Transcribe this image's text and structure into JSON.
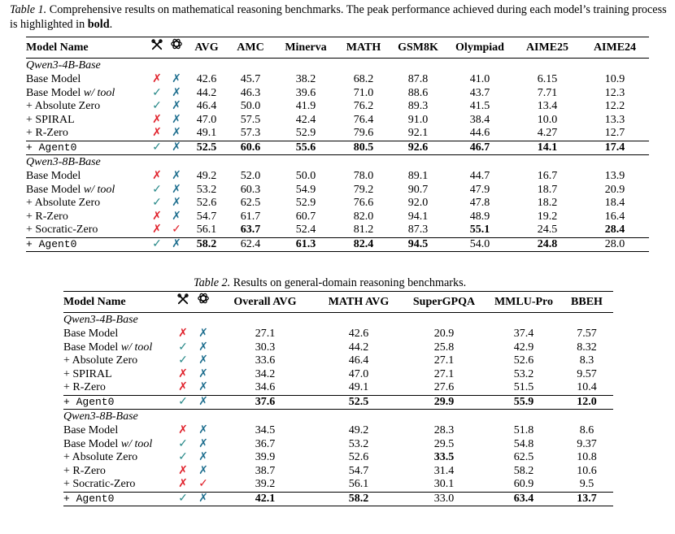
{
  "table1": {
    "label": "Table 1.",
    "caption_pre": "Comprehensive results on mathematical reasoning benchmarks. The peak performance achieved during each model’s training process is highlighted in",
    "caption_bold": "bold",
    "caption_end": ".",
    "header": {
      "model": "Model Name",
      "tool_icon": "tool-icon",
      "openai_icon": "openai-icon",
      "cols": [
        "AVG",
        "AMC",
        "Minerva",
        "MATH",
        "GSM8K",
        "Olympiad",
        "AIME25",
        "AIME24"
      ]
    },
    "groups": [
      {
        "title": "Qwen3-4B-Base",
        "rows": [
          {
            "name": "Base Model",
            "tool": "✗",
            "oa": "✗",
            "vals": [
              "42.6",
              "45.7",
              "38.2",
              "68.2",
              "87.8",
              "41.0",
              "6.15",
              "10.9"
            ],
            "bold": []
          },
          {
            "name": "Base Model",
            "name_it": "w/ tool",
            "tool": "✓",
            "oa": "✗",
            "vals": [
              "44.2",
              "46.3",
              "39.6",
              "71.0",
              "88.6",
              "43.7",
              "7.71",
              "12.3"
            ],
            "bold": []
          },
          {
            "name": "+ Absolute Zero",
            "tool": "✓",
            "oa": "✗",
            "vals": [
              "46.4",
              "50.0",
              "41.9",
              "76.2",
              "89.3",
              "41.5",
              "13.4",
              "12.2"
            ],
            "bold": []
          },
          {
            "name": "+ SPIRAL",
            "tool": "✗",
            "oa": "✗",
            "vals": [
              "47.0",
              "57.5",
              "42.4",
              "76.4",
              "91.0",
              "38.4",
              "10.0",
              "13.3"
            ],
            "bold": []
          },
          {
            "name": "+ R-Zero",
            "tool": "✗",
            "oa": "✗",
            "vals": [
              "49.1",
              "57.3",
              "52.9",
              "79.6",
              "92.1",
              "44.6",
              "4.27",
              "12.7"
            ],
            "bold": []
          },
          {
            "name": "+ Agent0",
            "mono": true,
            "tool": "✓",
            "oa": "✗",
            "vals": [
              "52.5",
              "60.6",
              "55.6",
              "80.5",
              "92.6",
              "46.7",
              "14.1",
              "17.4"
            ],
            "bold": [
              0,
              1,
              2,
              3,
              4,
              5,
              6,
              7
            ]
          }
        ]
      },
      {
        "title": "Qwen3-8B-Base",
        "rows": [
          {
            "name": "Base Model",
            "tool": "✗",
            "oa": "✗",
            "vals": [
              "49.2",
              "52.0",
              "50.0",
              "78.0",
              "89.1",
              "44.7",
              "16.7",
              "13.9"
            ],
            "bold": []
          },
          {
            "name": "Base Model",
            "name_it": "w/ tool",
            "tool": "✓",
            "oa": "✗",
            "vals": [
              "53.2",
              "60.3",
              "54.9",
              "79.2",
              "90.7",
              "47.9",
              "18.7",
              "20.9"
            ],
            "bold": []
          },
          {
            "name": "+ Absolute Zero",
            "tool": "✓",
            "oa": "✗",
            "vals": [
              "52.6",
              "62.5",
              "52.9",
              "76.6",
              "92.0",
              "47.8",
              "18.2",
              "18.4"
            ],
            "bold": []
          },
          {
            "name": "+ R-Zero",
            "tool": "✗",
            "oa": "✗",
            "vals": [
              "54.7",
              "61.7",
              "60.7",
              "82.0",
              "94.1",
              "48.9",
              "19.2",
              "16.4"
            ],
            "bold": []
          },
          {
            "name": "+ Socratic-Zero",
            "tool": "✗",
            "oa": "✓",
            "vals": [
              "56.1",
              "63.7",
              "52.4",
              "81.2",
              "87.3",
              "55.1",
              "24.5",
              "28.4"
            ],
            "bold": [
              1,
              5,
              7
            ]
          },
          {
            "name": "+ Agent0",
            "mono": true,
            "tool": "✓",
            "oa": "✗",
            "vals": [
              "58.2",
              "62.4",
              "61.3",
              "82.4",
              "94.5",
              "54.0",
              "24.8",
              "28.0"
            ],
            "bold": [
              0,
              2,
              3,
              4,
              6
            ]
          }
        ]
      }
    ]
  },
  "table2": {
    "label": "Table 2.",
    "caption": "Results on general-domain reasoning benchmarks.",
    "header": {
      "model": "Model Name",
      "tool_icon": "tool-icon",
      "openai_icon": "openai-icon",
      "cols": [
        "Overall AVG",
        "MATH AVG",
        "SuperGPQA",
        "MMLU-Pro",
        "BBEH"
      ]
    },
    "groups": [
      {
        "title": "Qwen3-4B-Base",
        "rows": [
          {
            "name": "Base Model",
            "tool": "✗",
            "oa": "✗",
            "vals": [
              "27.1",
              "42.6",
              "20.9",
              "37.4",
              "7.57"
            ],
            "bold": []
          },
          {
            "name": "Base Model",
            "name_it": "w/ tool",
            "tool": "✓",
            "oa": "✗",
            "vals": [
              "30.3",
              "44.2",
              "25.8",
              "42.9",
              "8.32"
            ],
            "bold": []
          },
          {
            "name": "+ Absolute Zero",
            "tool": "✓",
            "oa": "✗",
            "vals": [
              "33.6",
              "46.4",
              "27.1",
              "52.6",
              "8.3"
            ],
            "bold": []
          },
          {
            "name": "+ SPIRAL",
            "tool": "✗",
            "oa": "✗",
            "vals": [
              "34.2",
              "47.0",
              "27.1",
              "53.2",
              "9.57"
            ],
            "bold": []
          },
          {
            "name": "+ R-Zero",
            "tool": "✗",
            "oa": "✗",
            "vals": [
              "34.6",
              "49.1",
              "27.6",
              "51.5",
              "10.4"
            ],
            "bold": []
          },
          {
            "name": "+ Agent0",
            "mono": true,
            "tool": "✓",
            "oa": "✗",
            "vals": [
              "37.6",
              "52.5",
              "29.9",
              "55.9",
              "12.0"
            ],
            "bold": [
              0,
              1,
              2,
              3,
              4
            ]
          }
        ]
      },
      {
        "title": "Qwen3-8B-Base",
        "rows": [
          {
            "name": "Base Model",
            "tool": "✗",
            "oa": "✗",
            "vals": [
              "34.5",
              "49.2",
              "28.3",
              "51.8",
              "8.6"
            ],
            "bold": []
          },
          {
            "name": "Base Model",
            "name_it": "w/ tool",
            "tool": "✓",
            "oa": "✗",
            "vals": [
              "36.7",
              "53.2",
              "29.5",
              "54.8",
              "9.37"
            ],
            "bold": []
          },
          {
            "name": "+ Absolute Zero",
            "tool": "✓",
            "oa": "✗",
            "vals": [
              "39.9",
              "52.6",
              "33.5",
              "62.5",
              "10.8"
            ],
            "bold": [
              2
            ]
          },
          {
            "name": "+ R-Zero",
            "tool": "✗",
            "oa": "✗",
            "vals": [
              "38.7",
              "54.7",
              "31.4",
              "58.2",
              "10.6"
            ],
            "bold": []
          },
          {
            "name": "+ Socratic-Zero",
            "tool": "✗",
            "oa": "✓",
            "vals": [
              "39.2",
              "56.1",
              "30.1",
              "60.9",
              "9.5"
            ],
            "bold": []
          },
          {
            "name": "+ Agent0",
            "mono": true,
            "tool": "✓",
            "oa": "✗",
            "vals": [
              "42.1",
              "58.2",
              "33.0",
              "63.4",
              "13.7"
            ],
            "bold": [
              0,
              1,
              3,
              4
            ]
          }
        ]
      }
    ]
  },
  "colors": {
    "cross": "#e0202a",
    "check": "#2a8a8a",
    "oa_cross": "#1f6f8f"
  }
}
